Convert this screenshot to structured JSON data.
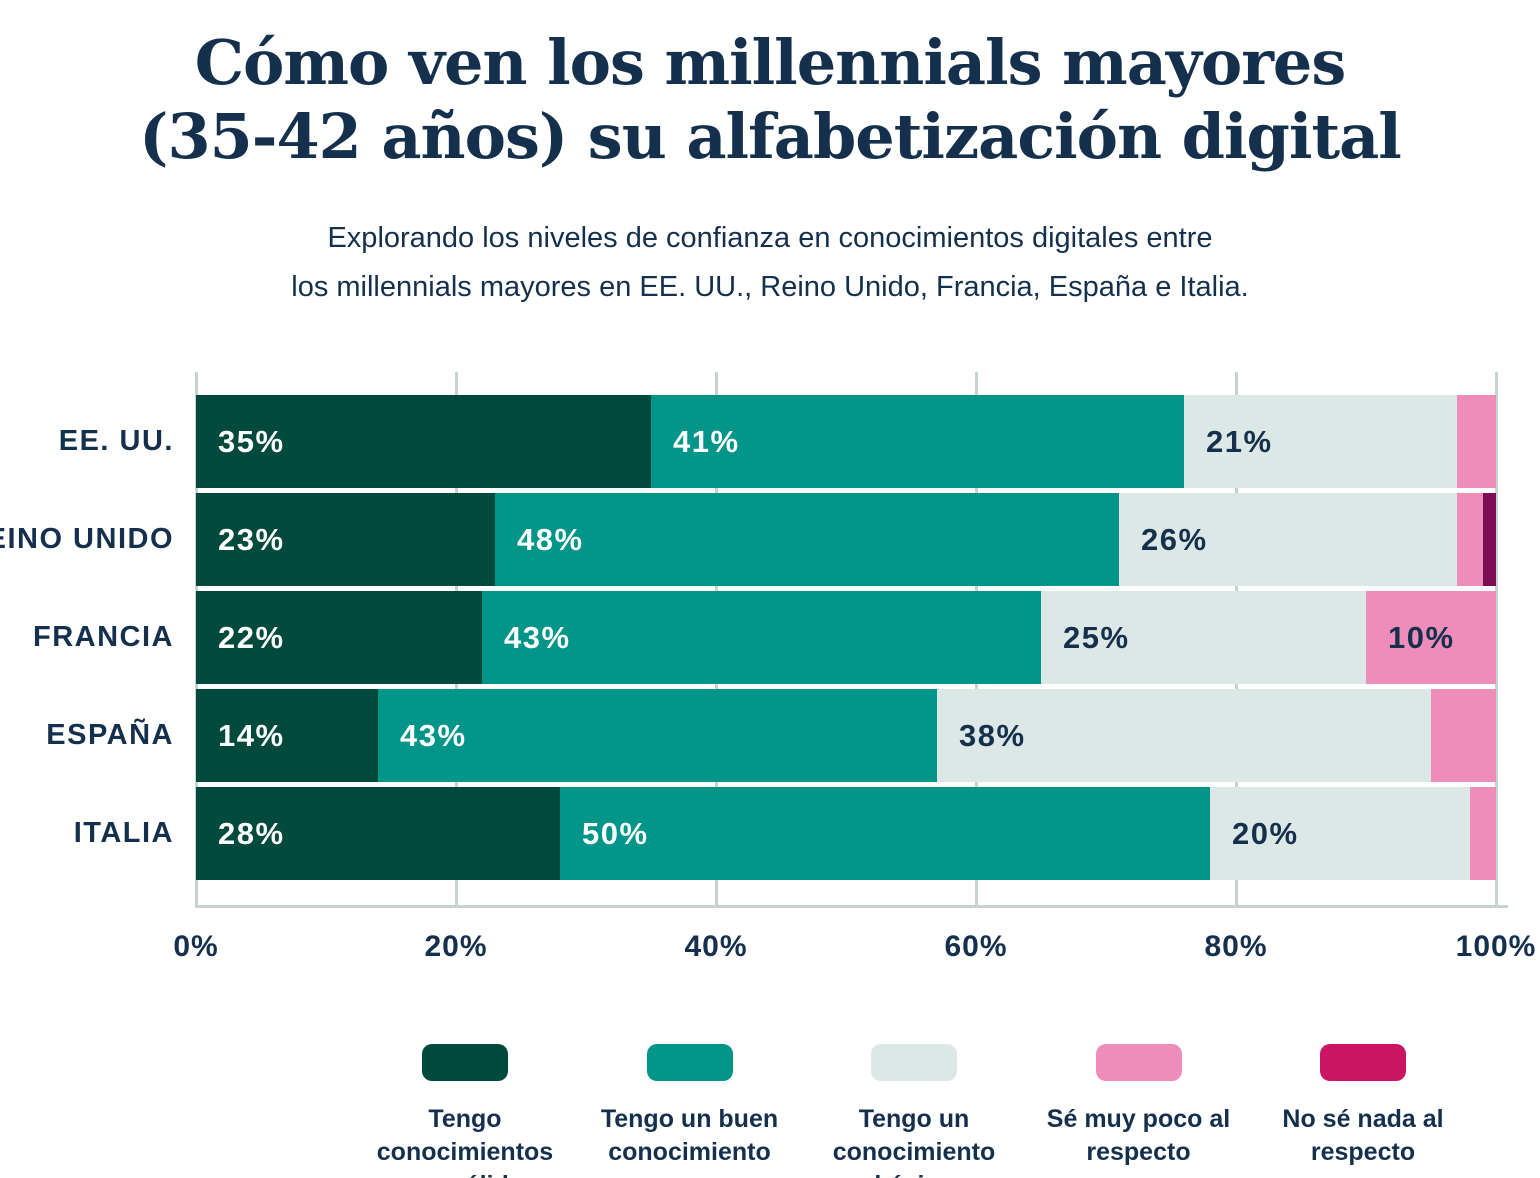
{
  "chart_data": {
    "type": "bar",
    "orientation": "horizontal-stacked",
    "title": "Cómo ven los millennials mayores (35-42 años) su alfabetización digital",
    "title_lines": [
      "Cómo ven los millennials mayores",
      "(35-42 años) su alfabetización digital"
    ],
    "subtitle": "Explorando los niveles de confianza en conocimientos digitales entre los millennials mayores en EE. UU., Reino Unido, Francia, España e Italia.",
    "subtitle_lines": [
      "Explorando los niveles de confianza en conocimientos digitales entre",
      "los millennials mayores en EE. UU., Reino Unido, Francia, España e Italia."
    ],
    "categories": [
      "EE. UU.",
      "REINO UNIDO",
      "FRANCIA",
      "ESPAÑA",
      "ITALIA"
    ],
    "series": [
      {
        "name": "Tengo conocimientos muy sólidos",
        "legend_lines": [
          "Tengo conocimientos",
          "muy sólidos"
        ],
        "color": "#004a3d",
        "label_color": "#ffffff",
        "values": [
          35,
          23,
          22,
          14,
          28
        ]
      },
      {
        "name": "Tengo un buen conocimiento",
        "legend_lines": [
          "Tengo un buen",
          "conocimiento"
        ],
        "color": "#009589",
        "label_color": "#ffffff",
        "values": [
          41,
          48,
          43,
          43,
          50
        ]
      },
      {
        "name": "Tengo un conocimiento básico",
        "legend_lines": [
          "Tengo un",
          "conocimiento básico"
        ],
        "color": "#dce8e6",
        "label_color": "#14304d",
        "values": [
          21,
          26,
          25,
          38,
          20
        ]
      },
      {
        "name": "Sé muy poco al respecto",
        "legend_lines": [
          "Sé muy poco al",
          "respecto"
        ],
        "color": "#ee8cba",
        "label_color": "#14304d",
        "values": [
          3,
          2,
          10,
          5,
          2
        ]
      },
      {
        "name": "No sé nada al respecto",
        "legend_lines": [
          "No sé nada al",
          "respecto"
        ],
        "color": "#7b0e52",
        "legend_color": "#cb1563",
        "label_color": "#ffffff",
        "values": [
          0,
          1,
          0,
          0,
          0
        ]
      }
    ],
    "xticks": [
      "0%",
      "20%",
      "40%",
      "60%",
      "80%",
      "100%"
    ],
    "xlim": [
      0,
      100
    ],
    "value_suffix": "%",
    "label_min_percent": 10,
    "grid": true,
    "legend_position": "bottom"
  },
  "colors": {
    "background": "#ffffff",
    "text_navy": "#14304d",
    "gridline": "#c7d3d1"
  }
}
